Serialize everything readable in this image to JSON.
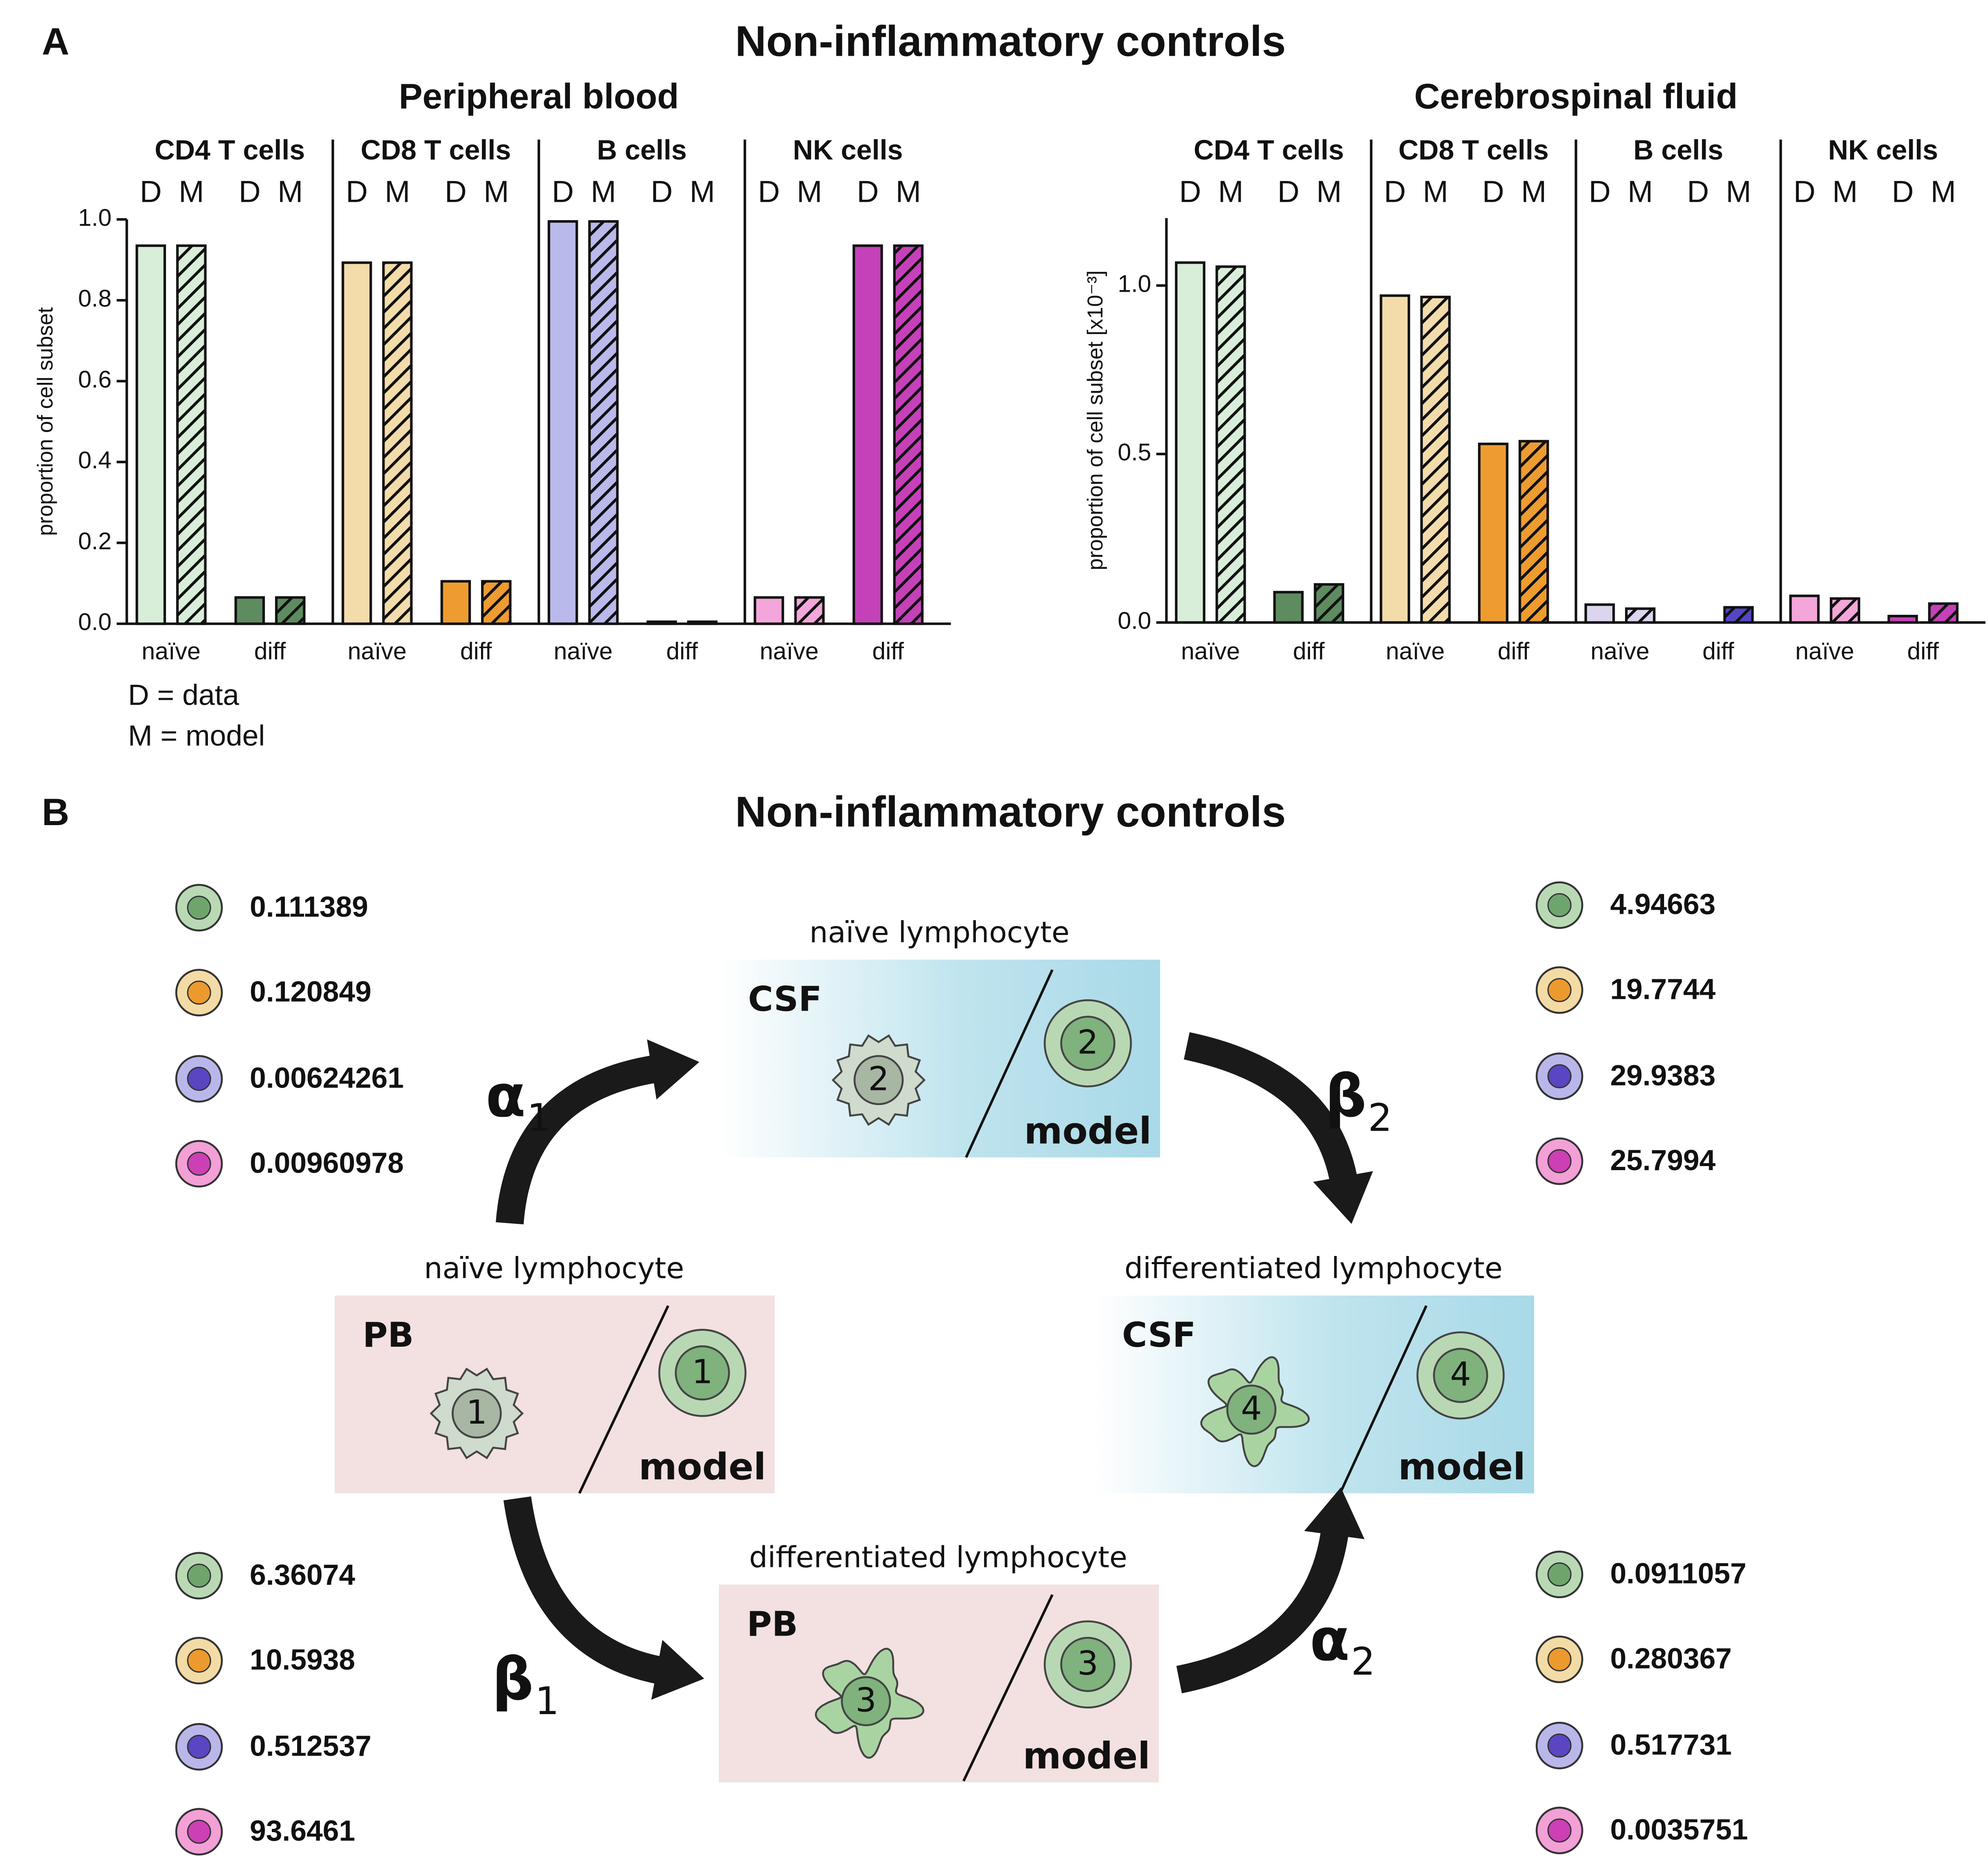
{
  "panel_a": {
    "label": "A",
    "title": "Non-inflammatory controls",
    "notes": [
      "D = data",
      "M = model"
    ]
  },
  "chart_data": [
    {
      "type": "bar",
      "title": "Peripheral blood",
      "y_label": "proportion of cell subset",
      "groups": [
        {
          "name": "CD4 T cells",
          "colors": [
            "#d8eed9",
            "#5e8b5f"
          ]
        },
        {
          "name": "CD8 T cells",
          "colors": [
            "#f3dcaa",
            "#ee9c2f"
          ]
        },
        {
          "name": "B cells",
          "colors": [
            "#b9b9ec",
            "#5b4dc4"
          ]
        },
        {
          "name": "NK cells",
          "colors": [
            "#f4a6da",
            "#c541b9"
          ]
        }
      ],
      "subgroups": [
        "naïve",
        "diff"
      ],
      "series": [
        {
          "name": "D",
          "hatched": false,
          "values": [
            0.935,
            0.065,
            0.893,
            0.105,
            0.995,
            0.005,
            0.065,
            0.935
          ]
        },
        {
          "name": "M",
          "hatched": true,
          "values": [
            0.935,
            0.065,
            0.893,
            0.105,
            0.995,
            0.005,
            0.065,
            0.935
          ]
        }
      ],
      "ylim": [
        0,
        1
      ],
      "yticks": [
        {
          "value": 0,
          "label": "0.0"
        },
        0.2,
        0.4,
        0.6,
        0.8,
        {
          "value": 1,
          "label": "1.0"
        }
      ]
    },
    {
      "type": "bar",
      "title": "Cerebrospinal fluid",
      "y_label": "proportion of cell subset [x10⁻³]",
      "groups": [
        {
          "name": "CD4 T cells",
          "colors": [
            "#d8eed9",
            "#5e8b5f"
          ]
        },
        {
          "name": "CD8 T cells",
          "colors": [
            "#f3dcaa",
            "#ee9c2f"
          ]
        },
        {
          "name": "B cells",
          "colors": [
            "#ddd5f0",
            "#5546c4"
          ]
        },
        {
          "name": "NK cells",
          "colors": [
            "#f4a6da",
            "#c541b9"
          ]
        }
      ],
      "subgroups": [
        "naïve",
        "diff"
      ],
      "series": [
        {
          "name": "D",
          "hatched": false,
          "values": [
            1.068,
            0.09,
            0.97,
            0.53,
            0.053,
            0,
            0.079,
            0.019
          ]
        },
        {
          "name": "M",
          "hatched": true,
          "values": [
            1.056,
            0.113,
            0.966,
            0.538,
            0.041,
            0.045,
            0.071,
            0.056
          ]
        }
      ],
      "ylim": [
        0,
        1.2
      ],
      "yticks": [
        {
          "value": 0,
          "label": "0.0"
        },
        0.5,
        {
          "value": 1,
          "label": "1.0"
        }
      ]
    }
  ],
  "panel_b": {
    "label": "B",
    "title": "Non-inflammatory controls",
    "nodes": [
      {
        "label": "naïve lymphocyte",
        "compartment": "PB",
        "number": "1",
        "model": "model"
      },
      {
        "label": "naïve lymphocyte",
        "compartment": "CSF",
        "number": "2",
        "model": "model"
      },
      {
        "label": "differentiated lymphocyte",
        "compartment": "PB",
        "number": "3",
        "model": "model"
      },
      {
        "label": "differentiated lymphocyte",
        "compartment": "CSF",
        "number": "4",
        "model": "model"
      }
    ],
    "rates": [
      {
        "symbol": "α",
        "subscript": "1",
        "values": [
          "0.111389",
          "0.120849",
          "0.00624261",
          "0.00960978"
        ]
      },
      {
        "symbol": "β",
        "subscript": "2",
        "values": [
          "4.94663",
          "19.7744",
          "29.9383",
          "25.7994"
        ]
      },
      {
        "symbol": "β",
        "subscript": "1",
        "values": [
          "6.36074",
          "10.5938",
          "0.512537",
          "93.6461"
        ]
      },
      {
        "symbol": "α",
        "subscript": "2",
        "values": [
          "0.0911057",
          "0.280367",
          "0.517731",
          "0.0035751"
        ]
      }
    ],
    "cell_colors": [
      [
        "#b9d9b5",
        "#6ea56d"
      ],
      [
        "#f3dba6",
        "#ec9a2e"
      ],
      [
        "#b9b7ea",
        "#5a45c2"
      ],
      [
        "#f2a0d6",
        "#cc3fb5"
      ]
    ]
  }
}
